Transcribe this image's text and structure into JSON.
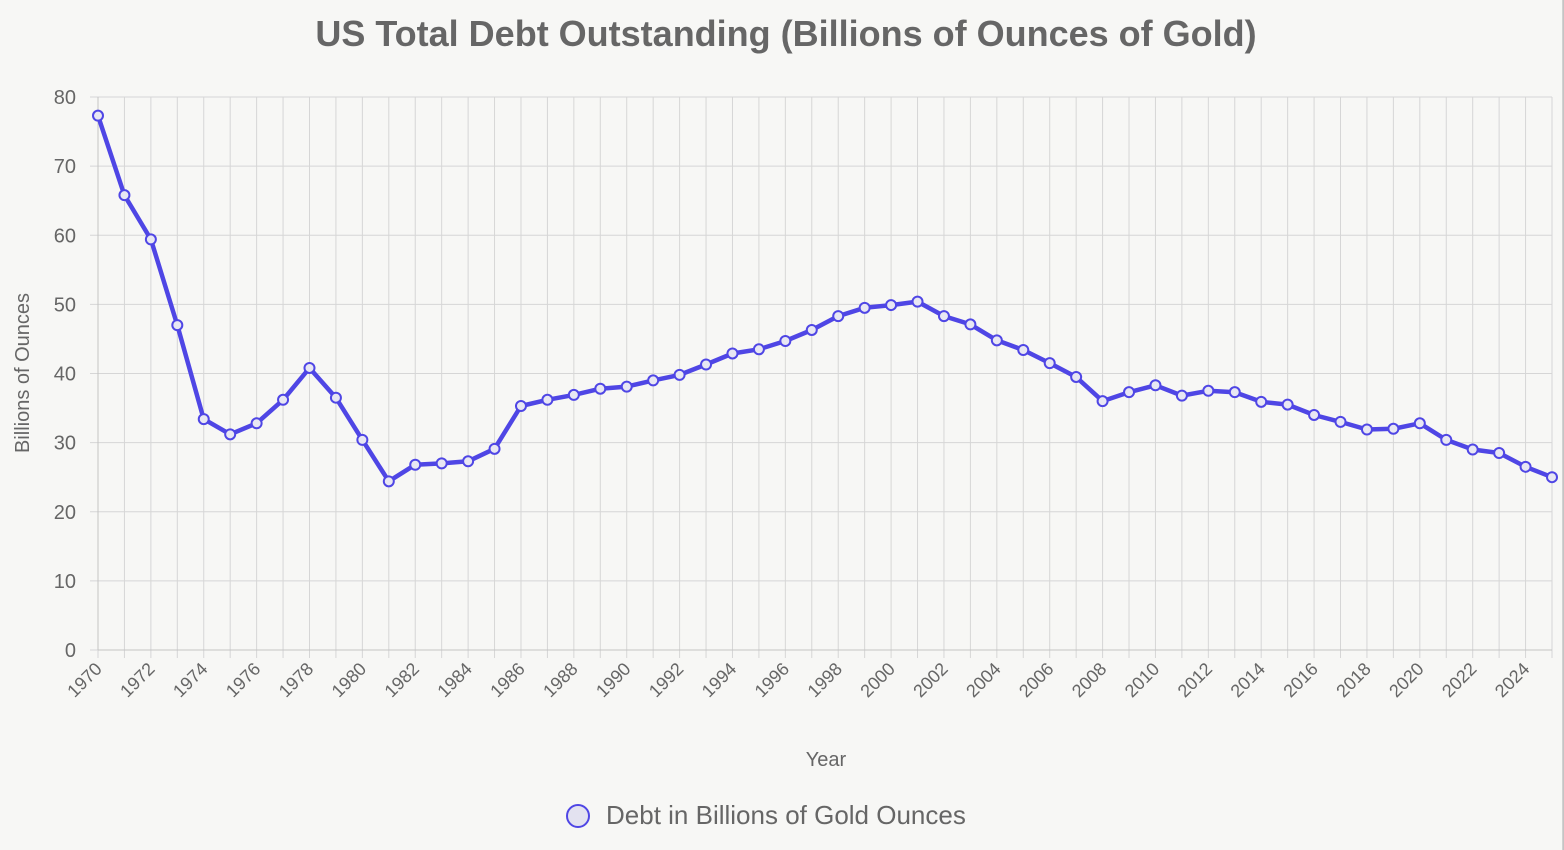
{
  "chart_data": {
    "type": "line",
    "title": "US Total Debt Outstanding (Billions of Ounces of Gold)",
    "xlabel": "Year",
    "ylabel": "Billions of Ounces",
    "xlim": [
      1970,
      2025
    ],
    "ylim": [
      0,
      80
    ],
    "yticks": [
      0,
      10,
      20,
      30,
      40,
      50,
      60,
      70,
      80
    ],
    "xticks": [
      1970,
      1972,
      1974,
      1976,
      1978,
      1980,
      1982,
      1984,
      1986,
      1988,
      1990,
      1992,
      1994,
      1996,
      1998,
      2000,
      2002,
      2004,
      2006,
      2008,
      2010,
      2012,
      2014,
      2016,
      2018,
      2020,
      2022,
      2024
    ],
    "grid": true,
    "legend_position": "bottom",
    "series": [
      {
        "name": "Debt in Billions of Gold Ounces",
        "color": "#4f46e5",
        "x": [
          1970,
          1971,
          1972,
          1973,
          1974,
          1975,
          1976,
          1977,
          1978,
          1979,
          1980,
          1981,
          1982,
          1983,
          1984,
          1985,
          1986,
          1987,
          1988,
          1989,
          1990,
          1991,
          1992,
          1993,
          1994,
          1995,
          1996,
          1997,
          1998,
          1999,
          2000,
          2001,
          2002,
          2003,
          2004,
          2005,
          2006,
          2007,
          2008,
          2009,
          2010,
          2011,
          2012,
          2013,
          2014,
          2015,
          2016,
          2017,
          2018,
          2019,
          2020,
          2021,
          2022,
          2023,
          2024,
          2025
        ],
        "values": [
          77.3,
          65.8,
          59.4,
          47.0,
          33.4,
          31.2,
          32.8,
          36.2,
          40.8,
          36.5,
          30.4,
          24.4,
          26.8,
          27.0,
          27.3,
          29.1,
          35.3,
          36.2,
          36.9,
          37.8,
          38.1,
          39.0,
          39.8,
          41.3,
          42.9,
          43.5,
          44.7,
          46.3,
          48.3,
          49.5,
          49.9,
          50.4,
          48.3,
          47.1,
          44.8,
          43.4,
          41.5,
          39.5,
          36.0,
          37.3,
          38.3,
          36.8,
          37.5,
          37.3,
          35.9,
          35.5,
          34.0,
          33.0,
          31.9,
          32.0,
          32.8,
          30.4,
          29.0,
          28.5,
          26.5,
          25.0
        ]
      }
    ]
  }
}
